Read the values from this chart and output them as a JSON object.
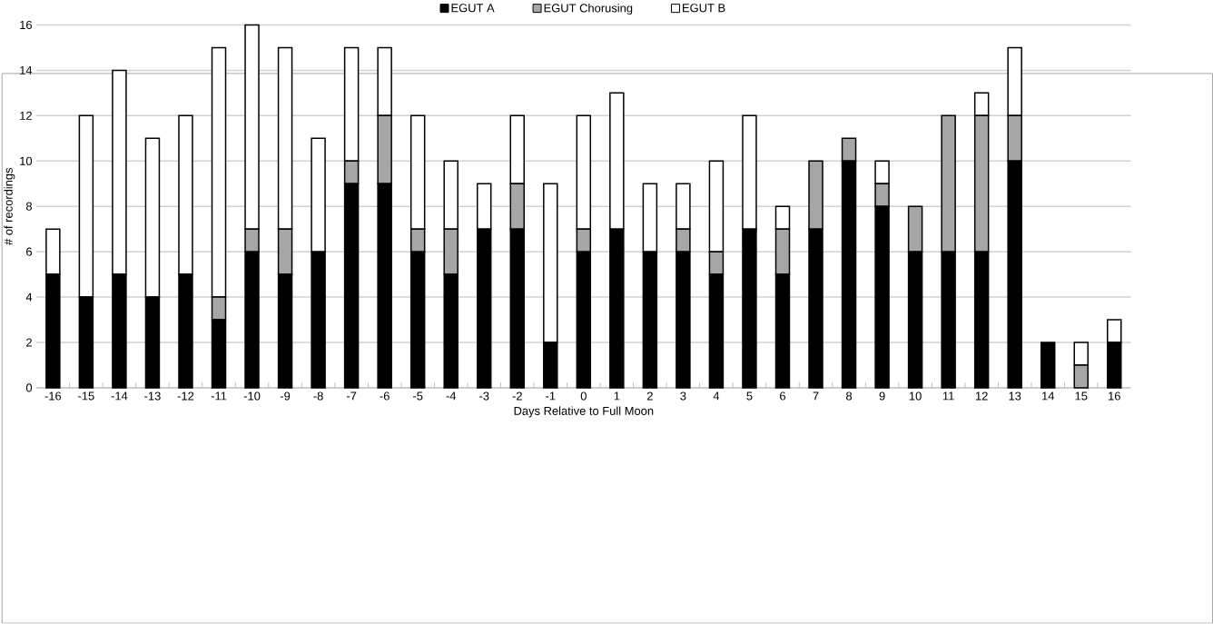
{
  "chart_data": {
    "type": "bar",
    "stacked": true,
    "xlabel": "Days Relative to Full Moon",
    "ylabel": "# of recordings",
    "categories": [
      "-16",
      "-15",
      "-14",
      "-13",
      "-12",
      "-11",
      "-10",
      "-9",
      "-8",
      "-7",
      "-6",
      "-5",
      "-4",
      "-3",
      "-2",
      "-1",
      "0",
      "1",
      "2",
      "3",
      "4",
      "5",
      "6",
      "7",
      "8",
      "9",
      "10",
      "11",
      "12",
      "13",
      "14",
      "15",
      "16"
    ],
    "series": [
      {
        "name": "EGUT A",
        "color": "#000000",
        "values": [
          5,
          4,
          5,
          4,
          5,
          3,
          6,
          5,
          6,
          9,
          9,
          6,
          5,
          7,
          7,
          2,
          6,
          7,
          6,
          6,
          5,
          7,
          5,
          7,
          10,
          8,
          6,
          6,
          6,
          10,
          2,
          0,
          2
        ]
      },
      {
        "name": "EGUT Chorusing",
        "color": "#a6a6a6",
        "values": [
          0,
          0,
          0,
          0,
          0,
          1,
          1,
          2,
          0,
          1,
          3,
          1,
          2,
          0,
          2,
          0,
          1,
          0,
          0,
          1,
          1,
          0,
          2,
          3,
          1,
          1,
          2,
          6,
          6,
          2,
          0,
          1,
          0
        ]
      },
      {
        "name": "EGUT B",
        "color": "#ffffff",
        "values": [
          2,
          8,
          9,
          7,
          7,
          11,
          9,
          8,
          5,
          5,
          3,
          5,
          3,
          2,
          3,
          7,
          5,
          6,
          3,
          2,
          4,
          5,
          1,
          0,
          0,
          1,
          0,
          0,
          1,
          3,
          0,
          1,
          1
        ]
      }
    ],
    "ylim": [
      0,
      16
    ],
    "yticks": [
      0,
      2,
      4,
      6,
      8,
      10,
      12,
      14,
      16
    ],
    "grid": "y",
    "legend": "top"
  }
}
